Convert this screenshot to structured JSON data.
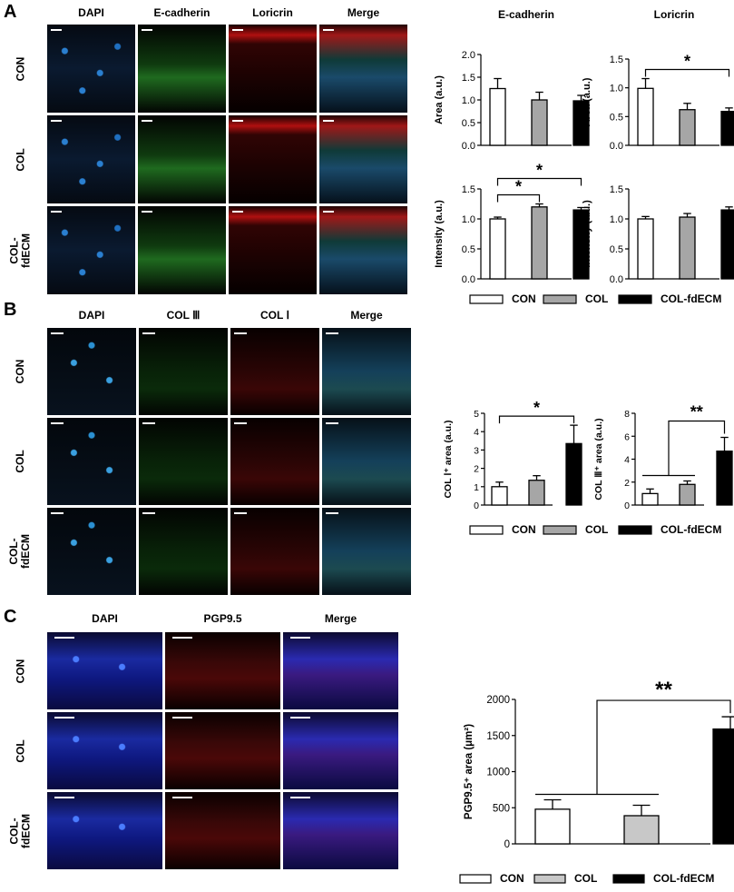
{
  "panels": {
    "A": {
      "label": "A",
      "columns": [
        "DAPI",
        "E-cadherin",
        "Loricrin",
        "Merge"
      ],
      "rows": [
        [
          "CON"
        ],
        [
          "COL"
        ],
        [
          "COL-",
          "fdECM"
        ]
      ]
    },
    "B": {
      "label": "B",
      "columns": [
        "DAPI",
        "COL Ⅲ",
        "COL Ⅰ",
        "Merge"
      ],
      "rows": [
        [
          "CON"
        ],
        [
          "COL"
        ],
        [
          "COL-",
          "fdECM"
        ]
      ]
    },
    "C": {
      "label": "C",
      "columns": [
        "DAPI",
        "PGP9.5",
        "Merge"
      ],
      "rows": [
        [
          "CON"
        ],
        [
          "COL"
        ],
        [
          "COL-",
          "fdECM"
        ]
      ]
    }
  },
  "legend": {
    "items": [
      {
        "label": "CON",
        "color": "#ffffff"
      },
      {
        "label": "COL",
        "color": "#a6a6a6"
      },
      {
        "label": "COL-fdECM",
        "color": "#000000"
      }
    ]
  },
  "legend_c": {
    "items": [
      {
        "label": "CON",
        "color": "#ffffff"
      },
      {
        "label": "COL",
        "color": "#c8c8c8"
      },
      {
        "label": "COL-fdECM",
        "color": "#000000"
      }
    ]
  },
  "chart_data": [
    {
      "type": "bar",
      "panel": "A",
      "title": "E-cadherin",
      "ylabel": "Area (a.u.)",
      "ylim": [
        0,
        2.0
      ],
      "yticks": [
        "0.0",
        "0.5",
        "1.0",
        "1.5",
        "2.0"
      ],
      "categories": [
        "CON",
        "COL",
        "COL-fdECM"
      ],
      "values": [
        1.25,
        1.0,
        0.98
      ],
      "errors": [
        0.22,
        0.17,
        0.12
      ],
      "colors": [
        "#ffffff",
        "#a6a6a6",
        "#000000"
      ],
      "annotations": []
    },
    {
      "type": "bar",
      "panel": "A",
      "title": "Loricrin",
      "ylabel": "Area (a.u.)",
      "ylim": [
        0,
        1.5
      ],
      "yticks": [
        "0.0",
        "0.5",
        "1.0",
        "1.5"
      ],
      "categories": [
        "CON",
        "COL",
        "COL-fdECM"
      ],
      "values": [
        0.99,
        0.62,
        0.59
      ],
      "errors": [
        0.17,
        0.11,
        0.06
      ],
      "colors": [
        "#ffffff",
        "#a6a6a6",
        "#000000"
      ],
      "annotations": [
        {
          "from": 0,
          "to": 2,
          "label": "*"
        }
      ]
    },
    {
      "type": "bar",
      "panel": "A",
      "ylabel": "Intensity (a.u.)",
      "ylim": [
        0,
        1.5
      ],
      "yticks": [
        "0.0",
        "0.5",
        "1.0",
        "1.5"
      ],
      "categories": [
        "CON",
        "COL",
        "COL-fdECM"
      ],
      "values": [
        1.0,
        1.2,
        1.15
      ],
      "errors": [
        0.03,
        0.05,
        0.04
      ],
      "colors": [
        "#ffffff",
        "#a6a6a6",
        "#000000"
      ],
      "annotations": [
        {
          "from": 0,
          "to": 1,
          "label": "*"
        },
        {
          "from": 0,
          "to": 2,
          "label": "*"
        }
      ]
    },
    {
      "type": "bar",
      "panel": "A",
      "ylabel": "Intensity (a.u.)",
      "ylim": [
        0,
        1.5
      ],
      "yticks": [
        "0.0",
        "0.5",
        "1.0",
        "1.5"
      ],
      "categories": [
        "CON",
        "COL",
        "COL-fdECM"
      ],
      "values": [
        1.0,
        1.03,
        1.15
      ],
      "errors": [
        0.04,
        0.06,
        0.05
      ],
      "colors": [
        "#ffffff",
        "#a6a6a6",
        "#000000"
      ],
      "annotations": []
    },
    {
      "type": "bar",
      "panel": "B",
      "ylabel": "COL Ⅰ⁺ area (a.u.)",
      "ylim": [
        0,
        5
      ],
      "yticks": [
        "0",
        "1",
        "2",
        "3",
        "4",
        "5"
      ],
      "categories": [
        "CON",
        "COL",
        "COL-fdECM"
      ],
      "values": [
        1.0,
        1.35,
        3.35
      ],
      "errors": [
        0.25,
        0.25,
        1.0
      ],
      "colors": [
        "#ffffff",
        "#a6a6a6",
        "#000000"
      ],
      "annotations": [
        {
          "from": 0,
          "to": 2,
          "label": "*"
        }
      ]
    },
    {
      "type": "bar",
      "panel": "B",
      "ylabel": "COL Ⅲ⁺ area (a.u.)",
      "ylim": [
        0,
        8
      ],
      "yticks": [
        "0",
        "2",
        "4",
        "6",
        "8"
      ],
      "categories": [
        "CON",
        "COL",
        "COL-fdECM"
      ],
      "values": [
        1.0,
        1.8,
        4.7
      ],
      "errors": [
        0.4,
        0.3,
        1.2
      ],
      "colors": [
        "#ffffff",
        "#a6a6a6",
        "#000000"
      ],
      "annotations": [
        {
          "from": "0-1",
          "to": 2,
          "label": "**"
        }
      ]
    },
    {
      "type": "bar",
      "panel": "C",
      "ylabel": "PGP9.5⁺ area (μm²)",
      "ylim": [
        0,
        2000
      ],
      "yticks": [
        "0",
        "500",
        "1000",
        "1500",
        "2000"
      ],
      "categories": [
        "CON",
        "COL",
        "COL-fdECM"
      ],
      "values": [
        480,
        390,
        1590
      ],
      "errors": [
        130,
        145,
        170
      ],
      "colors": [
        "#ffffff",
        "#c8c8c8",
        "#000000"
      ],
      "annotations": [
        {
          "from": "0-1",
          "to": 2,
          "label": "**"
        }
      ]
    }
  ]
}
